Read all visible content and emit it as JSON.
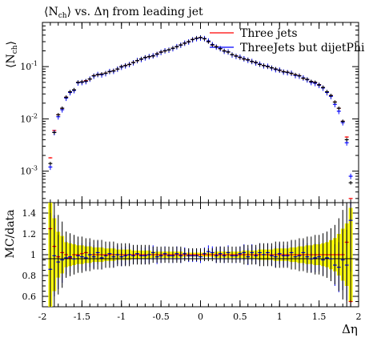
{
  "title": "⟨N_ch⟩ vs. Δη from leading jet",
  "legend": [
    {
      "label": "Three jets",
      "color": "#ff0000"
    },
    {
      "label": "ThreeJets but dijetPhi",
      "color": "#0000ff"
    }
  ],
  "colors": {
    "data": "#000000",
    "band_outer": "#ffff00",
    "band_inner": "#e8e800"
  },
  "chart_data": [
    {
      "type": "scatter",
      "title": "⟨N_ch⟩ vs. Δη from leading jet",
      "ylabel": "⟨N_ch⟩",
      "xlabel": "",
      "log_y": true,
      "ylim": [
        0.00025,
        0.7
      ],
      "xlim": [
        -2,
        2
      ],
      "y_tick_labels": [
        "10^-3",
        "10^-2",
        "10^-1"
      ],
      "x": [
        -1.9,
        -1.85,
        -1.8,
        -1.75,
        -1.7,
        -1.65,
        -1.6,
        -1.55,
        -1.5,
        -1.45,
        -1.4,
        -1.35,
        -1.3,
        -1.25,
        -1.2,
        -1.15,
        -1.1,
        -1.05,
        -1.0,
        -0.95,
        -0.9,
        -0.85,
        -0.8,
        -0.75,
        -0.7,
        -0.65,
        -0.6,
        -0.55,
        -0.5,
        -0.45,
        -0.4,
        -0.35,
        -0.3,
        -0.25,
        -0.2,
        -0.15,
        -0.1,
        -0.05,
        0.0,
        0.05,
        0.1,
        0.15,
        0.2,
        0.25,
        0.3,
        0.35,
        0.4,
        0.45,
        0.5,
        0.55,
        0.6,
        0.65,
        0.7,
        0.75,
        0.8,
        0.85,
        0.9,
        0.95,
        1.0,
        1.05,
        1.1,
        1.15,
        1.2,
        1.25,
        1.3,
        1.35,
        1.4,
        1.45,
        1.5,
        1.55,
        1.6,
        1.65,
        1.7,
        1.75,
        1.8,
        1.85,
        1.9
      ],
      "series": [
        {
          "name": "Three jets",
          "values": [
            0.0018,
            0.006,
            0.012,
            0.016,
            0.026,
            0.032,
            0.036,
            0.05,
            0.051,
            0.054,
            0.058,
            0.067,
            0.07,
            0.072,
            0.075,
            0.08,
            0.083,
            0.09,
            0.1,
            0.105,
            0.11,
            0.12,
            0.13,
            0.14,
            0.15,
            0.155,
            0.16,
            0.175,
            0.19,
            0.2,
            0.21,
            0.225,
            0.24,
            0.26,
            0.28,
            0.3,
            0.33,
            0.35,
            0.36,
            0.34,
            0.3,
            0.26,
            0.24,
            0.22,
            0.2,
            0.19,
            0.17,
            0.16,
            0.15,
            0.14,
            0.135,
            0.125,
            0.12,
            0.11,
            0.105,
            0.1,
            0.095,
            0.09,
            0.085,
            0.08,
            0.078,
            0.074,
            0.07,
            0.067,
            0.06,
            0.057,
            0.052,
            0.05,
            0.045,
            0.04,
            0.033,
            0.028,
            0.021,
            0.016,
            0.009,
            0.0045,
            0.0003
          ]
        },
        {
          "name": "ThreeJets but dijetPhi",
          "values": [
            0.0012,
            0.0055,
            0.011,
            0.015,
            0.025,
            0.032,
            0.035,
            0.049,
            0.05,
            0.052,
            0.058,
            0.066,
            0.071,
            0.07,
            0.074,
            0.081,
            0.082,
            0.09,
            0.098,
            0.104,
            0.11,
            0.119,
            0.131,
            0.138,
            0.148,
            0.156,
            0.162,
            0.172,
            0.188,
            0.202,
            0.208,
            0.222,
            0.242,
            0.258,
            0.282,
            0.298,
            0.328,
            0.345,
            0.355,
            0.345,
            0.31,
            0.265,
            0.238,
            0.222,
            0.198,
            0.192,
            0.168,
            0.158,
            0.152,
            0.142,
            0.133,
            0.126,
            0.118,
            0.112,
            0.104,
            0.102,
            0.094,
            0.088,
            0.086,
            0.079,
            0.077,
            0.075,
            0.068,
            0.066,
            0.061,
            0.056,
            0.05,
            0.048,
            0.044,
            0.039,
            0.032,
            0.027,
            0.019,
            0.014,
            0.0085,
            0.0035,
            0.0008
          ]
        },
        {
          "name": "data",
          "values": [
            0.0014,
            0.0055,
            0.012,
            0.016,
            0.026,
            0.033,
            0.036,
            0.05,
            0.051,
            0.053,
            0.058,
            0.067,
            0.07,
            0.072,
            0.075,
            0.08,
            0.083,
            0.09,
            0.1,
            0.105,
            0.11,
            0.12,
            0.13,
            0.14,
            0.15,
            0.155,
            0.16,
            0.175,
            0.19,
            0.2,
            0.21,
            0.225,
            0.24,
            0.26,
            0.28,
            0.3,
            0.33,
            0.35,
            0.36,
            0.34,
            0.3,
            0.26,
            0.24,
            0.22,
            0.2,
            0.19,
            0.17,
            0.16,
            0.15,
            0.14,
            0.135,
            0.125,
            0.12,
            0.11,
            0.105,
            0.1,
            0.095,
            0.09,
            0.085,
            0.08,
            0.078,
            0.074,
            0.07,
            0.067,
            0.06,
            0.057,
            0.052,
            0.05,
            0.045,
            0.04,
            0.033,
            0.028,
            0.021,
            0.016,
            0.009,
            0.004,
            0.0006
          ]
        }
      ]
    },
    {
      "type": "scatter",
      "title": "",
      "ylabel": "MC/data",
      "xlabel": "Δη",
      "ylim": [
        0.5,
        1.5
      ],
      "xlim": [
        -2,
        2
      ],
      "y_tick_labels": [
        "0.6",
        "0.8",
        "1",
        "1.2",
        "1.4"
      ],
      "x_tick_labels": [
        "-2",
        "-1.5",
        "-1",
        "-0.5",
        "0",
        "0.5",
        "1",
        "1.5",
        "2"
      ],
      "x": [
        -1.9,
        -1.85,
        -1.8,
        -1.75,
        -1.7,
        -1.65,
        -1.6,
        -1.55,
        -1.5,
        -1.45,
        -1.4,
        -1.35,
        -1.3,
        -1.25,
        -1.2,
        -1.15,
        -1.1,
        -1.05,
        -1.0,
        -0.95,
        -0.9,
        -0.85,
        -0.8,
        -0.75,
        -0.7,
        -0.65,
        -0.6,
        -0.55,
        -0.5,
        -0.45,
        -0.4,
        -0.35,
        -0.3,
        -0.25,
        -0.2,
        -0.15,
        -0.1,
        -0.05,
        0.0,
        0.05,
        0.1,
        0.15,
        0.2,
        0.25,
        0.3,
        0.35,
        0.4,
        0.45,
        0.5,
        0.55,
        0.6,
        0.65,
        0.7,
        0.75,
        0.8,
        0.85,
        0.9,
        0.95,
        1.0,
        1.05,
        1.1,
        1.15,
        1.2,
        1.25,
        1.3,
        1.35,
        1.4,
        1.45,
        1.5,
        1.55,
        1.6,
        1.65,
        1.7,
        1.75,
        1.8,
        1.85,
        1.9
      ],
      "band_halfwidth": [
        0.5,
        0.35,
        0.22,
        0.18,
        0.12,
        0.11,
        0.1,
        0.09,
        0.09,
        0.08,
        0.08,
        0.07,
        0.07,
        0.07,
        0.06,
        0.06,
        0.06,
        0.05,
        0.05,
        0.05,
        0.05,
        0.04,
        0.04,
        0.04,
        0.04,
        0.04,
        0.03,
        0.03,
        0.03,
        0.03,
        0.03,
        0.03,
        0.03,
        0.03,
        0.02,
        0.02,
        0.02,
        0.02,
        0.02,
        0.02,
        0.02,
        0.02,
        0.03,
        0.03,
        0.03,
        0.03,
        0.03,
        0.03,
        0.03,
        0.04,
        0.04,
        0.04,
        0.04,
        0.05,
        0.05,
        0.05,
        0.05,
        0.06,
        0.06,
        0.06,
        0.06,
        0.07,
        0.07,
        0.08,
        0.08,
        0.09,
        0.09,
        0.1,
        0.1,
        0.11,
        0.12,
        0.14,
        0.16,
        0.2,
        0.25,
        0.3,
        0.45
      ],
      "series": [
        {
          "name": "Three jets",
          "values": [
            1.25,
            1.08,
            0.98,
            1.02,
            1.0,
            0.97,
            1.0,
            1.0,
            1.01,
            1.02,
            1.0,
            1.0,
            1.0,
            1.0,
            1.0,
            1.0,
            1.0,
            1.0,
            1.0,
            1.0,
            1.0,
            1.0,
            1.0,
            1.0,
            1.0,
            1.0,
            1.0,
            1.0,
            1.0,
            1.0,
            1.0,
            1.0,
            1.0,
            1.0,
            1.0,
            1.0,
            1.0,
            1.0,
            1.0,
            1.0,
            1.0,
            1.0,
            1.0,
            1.0,
            1.0,
            1.0,
            1.0,
            1.0,
            1.0,
            1.0,
            1.0,
            1.0,
            1.0,
            1.0,
            1.0,
            1.0,
            1.0,
            1.0,
            1.0,
            1.0,
            1.0,
            1.0,
            1.0,
            1.0,
            1.0,
            1.0,
            1.0,
            1.0,
            1.0,
            1.0,
            1.0,
            1.0,
            1.0,
            1.0,
            1.0,
            1.12,
            0.55
          ]
        },
        {
          "name": "ThreeJets but dijetPhi",
          "values": [
            0.86,
            0.99,
            0.93,
            0.95,
            0.97,
            0.98,
            0.96,
            0.99,
            0.98,
            0.97,
            1.0,
            0.98,
            1.02,
            0.97,
            0.99,
            1.01,
            0.98,
            1.0,
            0.98,
            0.99,
            1.0,
            0.99,
            1.01,
            0.99,
            0.99,
            1.0,
            1.02,
            0.98,
            0.99,
            1.01,
            0.99,
            0.99,
            1.01,
            0.99,
            1.01,
            0.99,
            0.99,
            0.99,
            0.98,
            1.01,
            1.03,
            1.02,
            0.99,
            1.01,
            0.99,
            1.02,
            0.99,
            0.99,
            1.01,
            1.02,
            0.98,
            1.02,
            0.99,
            1.02,
            1.0,
            1.02,
            0.99,
            0.98,
            1.01,
            0.99,
            0.99,
            1.02,
            0.98,
            0.99,
            1.02,
            0.98,
            0.96,
            0.97,
            0.98,
            0.95,
            0.97,
            0.96,
            0.9,
            0.88,
            0.95,
            0.9,
            1.33
          ]
        },
        {
          "name": "data",
          "values": [
            1.0,
            1.0,
            1.0,
            1.0,
            1.0,
            1.0,
            1.0,
            1.0,
            1.0,
            1.0,
            1.0,
            1.0,
            1.0,
            1.0,
            1.0,
            1.0,
            1.0,
            1.0,
            1.0,
            1.0,
            1.0,
            1.0,
            1.0,
            1.0,
            1.0,
            1.0,
            1.0,
            1.0,
            1.0,
            1.0,
            1.0,
            1.0,
            1.0,
            1.0,
            1.0,
            1.0,
            1.0,
            1.0,
            1.0,
            1.0,
            1.0,
            1.0,
            1.0,
            1.0,
            1.0,
            1.0,
            1.0,
            1.0,
            1.0,
            1.0,
            1.0,
            1.0,
            1.0,
            1.0,
            1.0,
            1.0,
            1.0,
            1.0,
            1.0,
            1.0,
            1.0,
            1.0,
            1.0,
            1.0,
            1.0,
            1.0,
            1.0,
            1.0,
            1.0,
            1.0,
            1.0,
            1.0,
            1.0,
            1.0,
            1.0,
            1.0,
            1.0
          ]
        }
      ]
    }
  ]
}
